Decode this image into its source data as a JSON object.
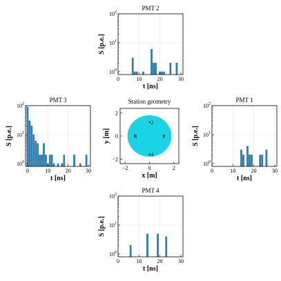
{
  "chart_data": [
    {
      "id": "pmt2",
      "type": "bar",
      "title": "PMT 2",
      "xlabel": "t [ns]",
      "ylabel": "S [p.e.]",
      "yscale": "log",
      "xlim": [
        0,
        31
      ],
      "ylim": [
        0.8,
        100
      ],
      "xticks": [
        0,
        10,
        20,
        30
      ],
      "yticks": [
        {
          "value": 1,
          "label": "10",
          "exp": "0"
        },
        {
          "value": 10,
          "label": "10",
          "exp": "1"
        },
        {
          "value": 100,
          "label": "10",
          "exp": "2"
        }
      ],
      "grid": true,
      "bars": [
        {
          "x": 7,
          "y": 3
        },
        {
          "x": 8,
          "y": 1
        },
        {
          "x": 9,
          "y": 1
        },
        {
          "x": 12,
          "y": 1
        },
        {
          "x": 16,
          "y": 6
        },
        {
          "x": 17,
          "y": 2
        },
        {
          "x": 18,
          "y": 2
        },
        {
          "x": 20,
          "y": 1
        },
        {
          "x": 21,
          "y": 1
        },
        {
          "x": 22,
          "y": 1
        },
        {
          "x": 25,
          "y": 2
        },
        {
          "x": 28,
          "y": 2
        }
      ]
    },
    {
      "id": "pmt3",
      "type": "bar",
      "title": "PMT 3",
      "xlabel": "t [ns]",
      "ylabel": "S [p.e.]",
      "yscale": "log",
      "xlim": [
        -1,
        31
      ],
      "ylim": [
        0.8,
        100
      ],
      "xticks": [
        0,
        10,
        20,
        30
      ],
      "yticks": [
        {
          "value": 1,
          "label": "10",
          "exp": "0"
        },
        {
          "value": 10,
          "label": "10",
          "exp": "1"
        },
        {
          "value": 100,
          "label": "10",
          "exp": "2"
        }
      ],
      "grid": true,
      "bars": [
        {
          "x": 0,
          "y": 90
        },
        {
          "x": 1,
          "y": 30
        },
        {
          "x": 2,
          "y": 20
        },
        {
          "x": 3,
          "y": 10
        },
        {
          "x": 4,
          "y": 6
        },
        {
          "x": 5,
          "y": 5
        },
        {
          "x": 6,
          "y": 2
        },
        {
          "x": 7,
          "y": 2
        },
        {
          "x": 8,
          "y": 5
        },
        {
          "x": 9,
          "y": 2
        },
        {
          "x": 10,
          "y": 1
        },
        {
          "x": 11,
          "y": 2
        },
        {
          "x": 12,
          "y": 2
        },
        {
          "x": 13,
          "y": 1
        },
        {
          "x": 15,
          "y": 1
        },
        {
          "x": 17,
          "y": 1
        },
        {
          "x": 18,
          "y": 2
        },
        {
          "x": 23,
          "y": 2
        },
        {
          "x": 26,
          "y": 1
        },
        {
          "x": 29,
          "y": 2
        }
      ]
    },
    {
      "id": "pmt1",
      "type": "bar",
      "title": "PMT 1",
      "xlabel": "t [ns]",
      "ylabel": "S [p.e.]",
      "yscale": "log",
      "xlim": [
        0,
        31
      ],
      "ylim": [
        0.8,
        100
      ],
      "xticks": [
        0,
        10,
        20,
        30
      ],
      "yticks": [
        {
          "value": 1,
          "label": "10",
          "exp": "0"
        },
        {
          "value": 10,
          "label": "10",
          "exp": "1"
        },
        {
          "value": 100,
          "label": "10",
          "exp": "2"
        }
      ],
      "grid": true,
      "bars": [
        {
          "x": 14,
          "y": 3
        },
        {
          "x": 15,
          "y": 2
        },
        {
          "x": 17,
          "y": 4
        },
        {
          "x": 18,
          "y": 2
        },
        {
          "x": 19,
          "y": 2
        },
        {
          "x": 23,
          "y": 2
        },
        {
          "x": 24,
          "y": 2
        },
        {
          "x": 26,
          "y": 3
        }
      ]
    },
    {
      "id": "pmt4",
      "type": "bar",
      "title": "PMT 4",
      "xlabel": "t [ns]",
      "ylabel": "S [p.e.]",
      "yscale": "log",
      "xlim": [
        0,
        31
      ],
      "ylim": [
        0.8,
        100
      ],
      "xticks": [
        0,
        10,
        20,
        30
      ],
      "yticks": [
        {
          "value": 1,
          "label": "10",
          "exp": "0"
        },
        {
          "value": 10,
          "label": "10",
          "exp": "1"
        },
        {
          "value": 100,
          "label": "10",
          "exp": "2"
        }
      ],
      "grid": true,
      "bars": [
        {
          "x": 6,
          "y": 2
        },
        {
          "x": 14,
          "y": 5
        },
        {
          "x": 19,
          "y": 5
        },
        {
          "x": 23,
          "y": 4
        }
      ]
    },
    {
      "id": "geometry",
      "type": "scatter",
      "title": "Station geometry",
      "xlabel": "x [m]",
      "ylabel": "y [m]",
      "xlim": [
        -2.4,
        2.4
      ],
      "ylim": [
        -2.4,
        2.4
      ],
      "xticks": [
        -2,
        0,
        2
      ],
      "yticks": [
        -2,
        0,
        2
      ],
      "circle": {
        "cx": 0,
        "cy": 0,
        "r": 1.8,
        "color": "#1ad3e4"
      },
      "points": [
        {
          "label": "1",
          "x": 1.2,
          "y": 0
        },
        {
          "label": "2",
          "x": 0,
          "y": 1.2
        },
        {
          "label": "3",
          "x": -1.2,
          "y": 0
        },
        {
          "label": "4",
          "x": 0,
          "y": -1.6
        }
      ]
    }
  ]
}
